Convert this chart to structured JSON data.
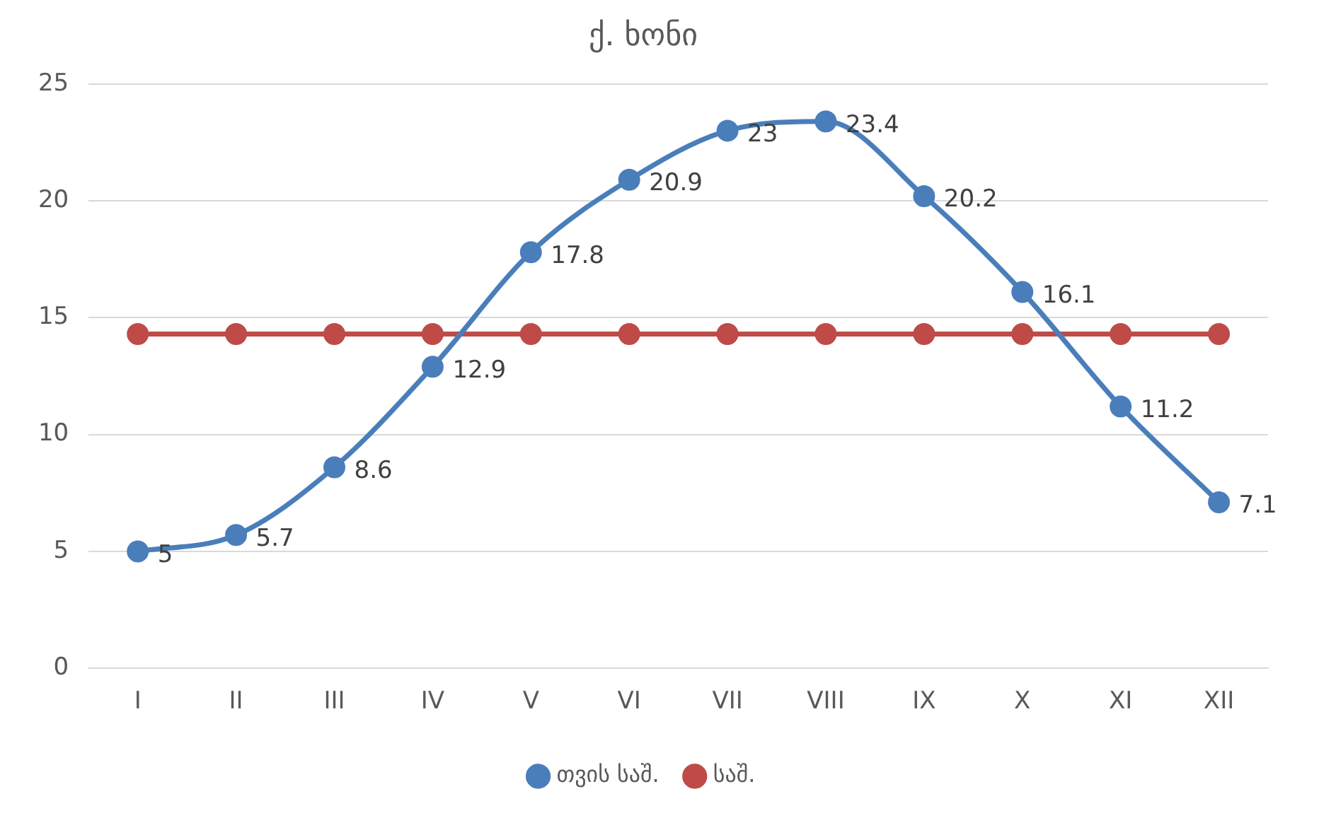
{
  "chart_data": {
    "type": "line",
    "title": "ქ. ხონი",
    "categories": [
      "I",
      "II",
      "III",
      "IV",
      "V",
      "VI",
      "VII",
      "VIII",
      "IX",
      "X",
      "XI",
      "XII"
    ],
    "series": [
      {
        "name": "თვის საშ.",
        "color": "#4a7ebb",
        "values": [
          5,
          5.7,
          8.6,
          12.9,
          17.8,
          20.9,
          23,
          23.4,
          20.2,
          16.1,
          11.2,
          7.1
        ],
        "value_labels": [
          "5",
          "5.7",
          "8.6",
          "12.9",
          "17.8",
          "20.9",
          "23",
          "23.4",
          "20.2",
          "16.1",
          "11.2",
          "7.1"
        ]
      },
      {
        "name": "საშ.",
        "color": "#be4b48",
        "values": [
          14.3,
          14.3,
          14.3,
          14.3,
          14.3,
          14.3,
          14.3,
          14.3,
          14.3,
          14.3,
          14.3,
          14.3
        ]
      }
    ],
    "ylim": [
      0,
      25
    ],
    "yticks": [
      0,
      5,
      10,
      15,
      20,
      25
    ],
    "grid": "y",
    "legend": "bottom",
    "marker": "circle",
    "line_style": "solid"
  }
}
